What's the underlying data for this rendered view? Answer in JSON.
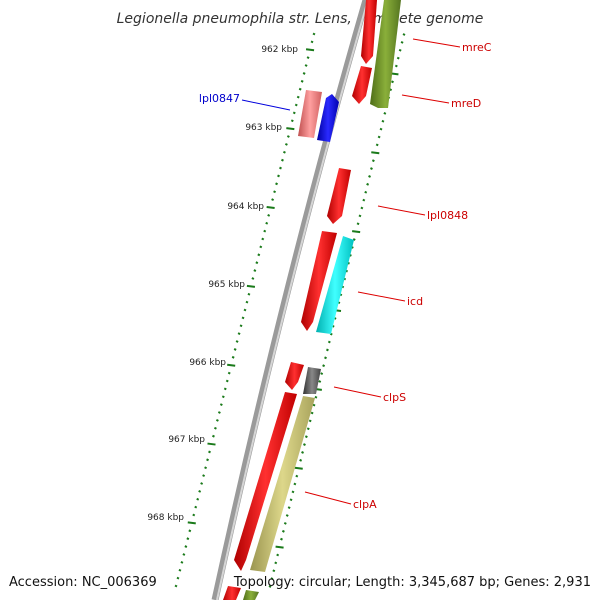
{
  "title": "Legionella pneumophila str. Lens, complete genome",
  "footer": {
    "accession": "Accession: NC_006369",
    "summary": "Topology: circular; Length: 3,345,687 bp; Genes: 2,931"
  },
  "kbp_labels": [
    "962 kbp",
    "963 kbp",
    "964 kbp",
    "965 kbp",
    "966 kbp",
    "967 kbp",
    "968 kbp"
  ],
  "genes": [
    {
      "label": "mreC",
      "color": "#cc0000"
    },
    {
      "label": "mreD",
      "color": "#cc0000"
    },
    {
      "label": "lpl0847",
      "color": "#0000cc"
    },
    {
      "label": "lpl0848",
      "color": "#cc0000"
    },
    {
      "label": "icd",
      "color": "#cc0000"
    },
    {
      "label": "clpS",
      "color": "#cc0000"
    },
    {
      "label": "clpA",
      "color": "#cc0000"
    }
  ],
  "colors": {
    "backbone": "#808080",
    "tick": "#1a7a1a",
    "forward_cds": "#ee0000",
    "pink_cds": "#f08080",
    "blue_cds": "#0000ee",
    "cyan_cds": "#00e5e5",
    "olive_cds": "#6b8e23",
    "khaki_cds": "#bdb76b",
    "gray_cds": "#555555"
  }
}
